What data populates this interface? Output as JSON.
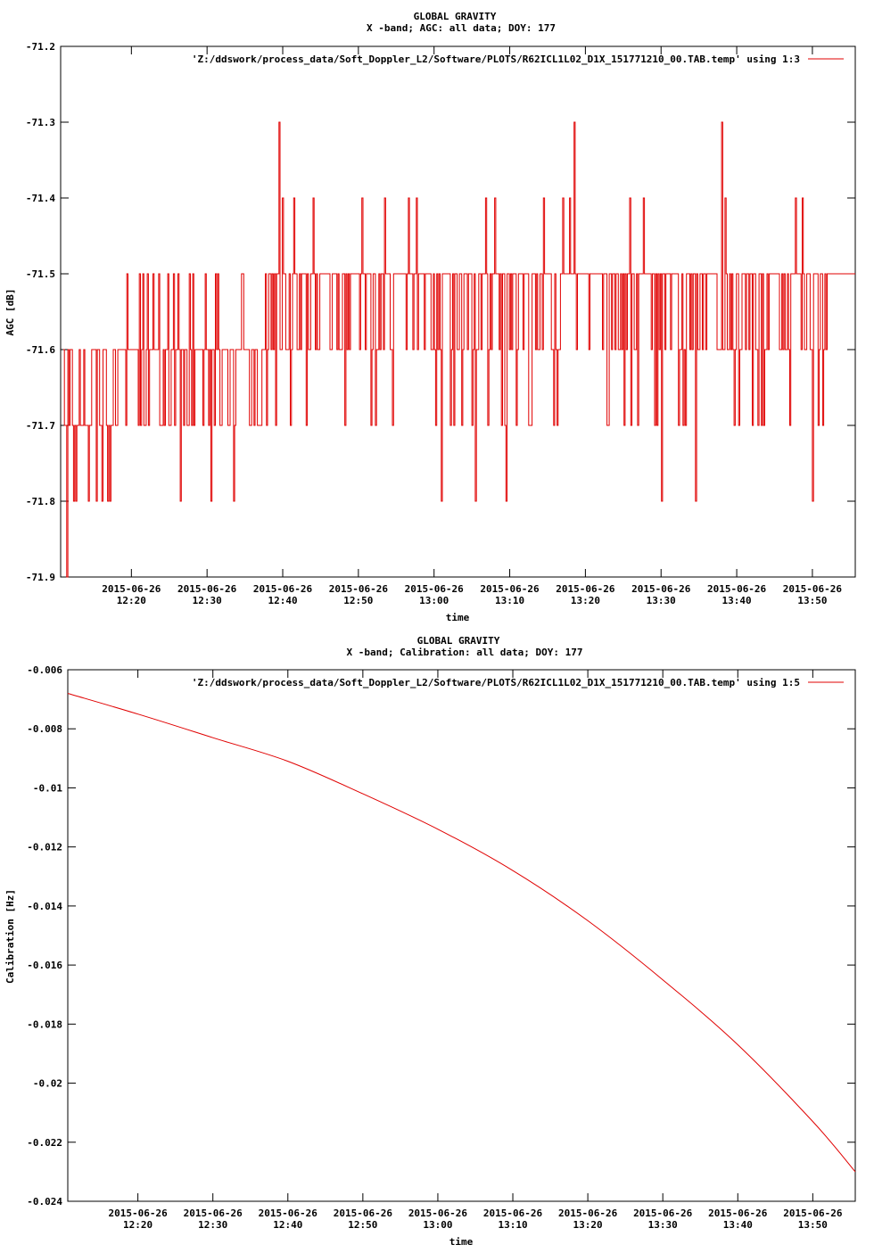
{
  "chart_data": [
    {
      "type": "line",
      "title": "GLOBAL GRAVITY",
      "subtitle": "X -band; AGC: all data; DOY: 177",
      "xlabel": "time",
      "ylabel": "AGC [dB]",
      "ylim": [
        -71.9,
        -71.2
      ],
      "yticks": [
        -71.2,
        -71.3,
        -71.4,
        -71.5,
        -71.6,
        -71.7,
        -71.8,
        -71.9
      ],
      "ytick_labels": [
        "-71.2",
        "-71.3",
        "-71.4",
        "-71.5",
        "-71.6",
        "-71.7",
        "-71.8",
        "-71.9"
      ],
      "xlim": [
        "2015-06-26 12:10:39",
        "2015-06-26 13:55:40"
      ],
      "xticks": [
        "12:20",
        "12:30",
        "12:40",
        "12:50",
        "13:00",
        "13:10",
        "13:20",
        "13:30",
        "13:40",
        "13:50"
      ],
      "xtick_date": "2015-06-26",
      "grid": false,
      "legend_position": "top-right",
      "color": "#e00000",
      "series": [
        {
          "name": "'Z:/ddswork/process_data/Soft_Doppler_L2/Software/PLOTS/R62ICL1L02_D1X_151771210_00.TAB.temp' using 1:3",
          "base_level": [
            {
              "from": "12:11",
              "to": "12:18",
              "values": [
                -71.7,
                -71.6,
                -71.8
              ]
            },
            {
              "from": "12:18",
              "to": "12:38",
              "values": [
                -71.6,
                -71.7,
                -71.5
              ]
            },
            {
              "from": "12:38",
              "to": "13:52",
              "values": [
                -71.5,
                -71.6,
                -71.7,
                -71.4
              ]
            }
          ],
          "spikes": [
            {
              "x": "12:11:30",
              "y": -71.9
            },
            {
              "x": "12:39:30",
              "y": -71.3
            },
            {
              "x": "13:18:30",
              "y": -71.3
            },
            {
              "x": "13:38:00",
              "y": -71.3
            },
            {
              "x": "12:17:10",
              "y": -71.8
            },
            {
              "x": "12:26:30",
              "y": -71.8
            },
            {
              "x": "12:30:30",
              "y": -71.8
            },
            {
              "x": "12:33:30",
              "y": -71.8
            },
            {
              "x": "13:01:00",
              "y": -71.8
            },
            {
              "x": "13:05:30",
              "y": -71.8
            },
            {
              "x": "13:09:30",
              "y": -71.8
            },
            {
              "x": "13:30:00",
              "y": -71.8
            },
            {
              "x": "13:34:30",
              "y": -71.8
            },
            {
              "x": "13:50:00",
              "y": -71.8
            }
          ]
        }
      ]
    },
    {
      "type": "line",
      "title": "GLOBAL GRAVITY",
      "subtitle": "X -band; Calibration: all data; DOY: 177",
      "xlabel": "time",
      "ylabel": "Calibration [Hz]",
      "ylim": [
        -0.024,
        -0.006
      ],
      "yticks": [
        -0.006,
        -0.008,
        -0.01,
        -0.012,
        -0.014,
        -0.016,
        -0.018,
        -0.02,
        -0.022,
        -0.024
      ],
      "ytick_labels": [
        "-0.006",
        "-0.008",
        "-0.01",
        "-0.012",
        "-0.014",
        "-0.016",
        "-0.018",
        "-0.02",
        "-0.022",
        "-0.024"
      ],
      "xlim": [
        "2015-06-26 12:10:39",
        "2015-06-26 13:55:40"
      ],
      "xticks": [
        "12:20",
        "12:30",
        "12:40",
        "12:50",
        "13:00",
        "13:10",
        "13:20",
        "13:30",
        "13:40",
        "13:50"
      ],
      "xtick_date": "2015-06-26",
      "grid": false,
      "legend_position": "top-right",
      "color": "#e00000",
      "series": [
        {
          "name": "'Z:/ddswork/process_data/Soft_Doppler_L2/Software/PLOTS/R62ICL1L02_D1X_151771210_00.TAB.temp' using 1:5",
          "x": [
            "12:10:39",
            "12:20:00",
            "12:30:00",
            "12:40:00",
            "12:50:00",
            "13:00:00",
            "13:10:00",
            "13:20:00",
            "13:30:00",
            "13:40:00",
            "13:50:00",
            "13:55:40"
          ],
          "y": [
            -0.0068,
            -0.0075,
            -0.0083,
            -0.0091,
            -0.0102,
            -0.0114,
            -0.0128,
            -0.0145,
            -0.0165,
            -0.0187,
            -0.0213,
            -0.023
          ]
        }
      ]
    }
  ]
}
